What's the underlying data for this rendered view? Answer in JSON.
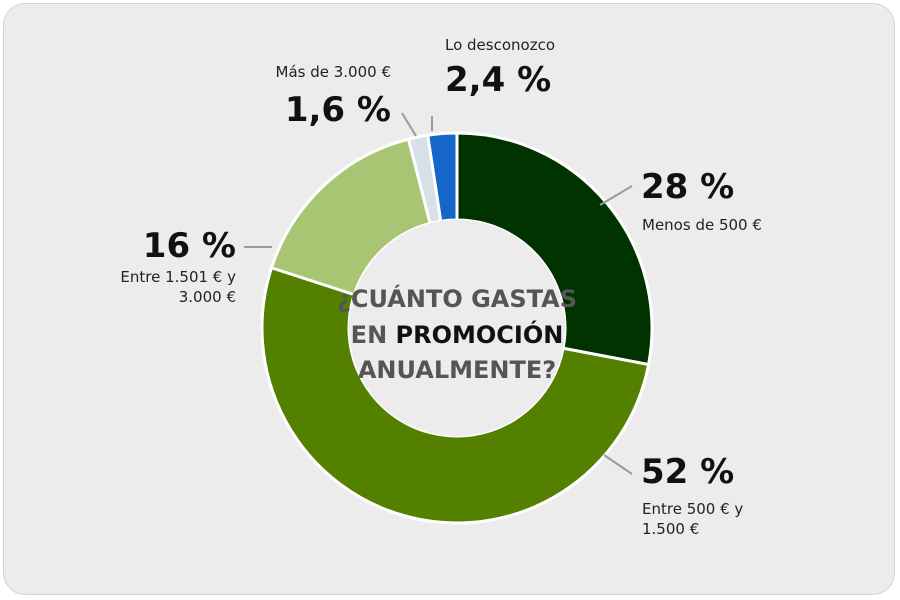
{
  "chart_data": {
    "type": "pie",
    "title_lines": [
      [
        {
          "text": "¿CUÁNTO GASTAS",
          "emphasis": false
        }
      ],
      [
        {
          "text": "EN ",
          "emphasis": false
        },
        {
          "text": "PROMOCIÓN",
          "emphasis": true
        }
      ],
      [
        {
          "text": "ANUALMENTE?",
          "emphasis": false
        }
      ]
    ],
    "slices": [
      {
        "label_lines": [
          "Menos de 500 €"
        ],
        "value": 28,
        "value_text": "28 %",
        "color": "#003300"
      },
      {
        "label_lines": [
          "Entre 500 € y",
          "1.500 €"
        ],
        "value": 52,
        "value_text": "52 %",
        "color": "#548000"
      },
      {
        "label_lines": [
          "Entre 1.501 € y",
          "3.000 €"
        ],
        "value": 16,
        "value_text": "16 %",
        "color": "#a7c573"
      },
      {
        "label_lines": [
          "Más de 3.000 €"
        ],
        "value": 1.6,
        "value_text": "1,6 %",
        "color": "#d5e1e6"
      },
      {
        "label_lines": [
          "Lo desconozco"
        ],
        "value": 2.4,
        "value_text": "2,4 %",
        "color": "#1566c8"
      }
    ],
    "colors": {
      "background": "#ececec",
      "leader_line": "#9a9a9a",
      "center": "#ececec"
    }
  }
}
